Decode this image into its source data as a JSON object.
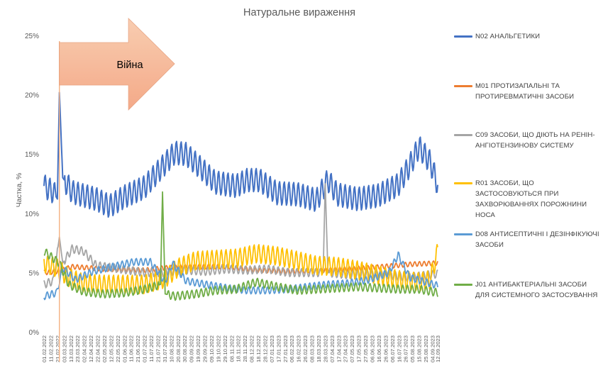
{
  "chart_data": {
    "type": "line",
    "title": "Натуральне вираження",
    "xlabel": "",
    "ylabel": "Частка, %",
    "ylim": [
      0,
      25
    ],
    "yticks": [
      "0%",
      "5%",
      "10%",
      "15%",
      "20%",
      "25%"
    ],
    "grid": false,
    "legend_position": "right",
    "x_start": "2022-02-01",
    "x_end": "2023-09-12",
    "x_tick_labels": [
      "01.02.2022",
      "11.02.2022",
      "21.02.2022",
      "03.03.2022",
      "13.03.2022",
      "23.03.2022",
      "02.04.2022",
      "12.04.2022",
      "22.04.2022",
      "02.05.2022",
      "12.05.2022",
      "22.05.2022",
      "01.06.2022",
      "11.06.2022",
      "21.06.2022",
      "01.07.2022",
      "11.07.2022",
      "21.07.2022",
      "31.07.2022",
      "10.08.2022",
      "20.08.2022",
      "30.08.2022",
      "09.09.2022",
      "19.09.2022",
      "29.09.2022",
      "09.10.2022",
      "19.10.2022",
      "29.10.2022",
      "08.11.2022",
      "18.11.2022",
      "28.11.2022",
      "08.12.2022",
      "18.12.2022",
      "28.12.2022",
      "07.01.2023",
      "17.01.2023",
      "27.01.2023",
      "06.02.2023",
      "16.02.2023",
      "26.02.2023",
      "08.03.2023",
      "18.03.2023",
      "28.03.2023",
      "07.04.2023",
      "17.04.2023",
      "27.04.2023",
      "07.05.2023",
      "17.05.2023",
      "27.05.2023",
      "06.06.2023",
      "16.06.2023",
      "26.06.2023",
      "06.07.2023",
      "16.07.2023",
      "26.07.2023",
      "05.08.2023",
      "15.08.2023",
      "25.08.2023",
      "04.09.2023",
      "12.09.2023"
    ],
    "annotation": {
      "text": "Війна",
      "marker_date": "2022-02-24",
      "arrow_from": "2022-02-24",
      "arrow_to": "2022-08-15"
    },
    "series": [
      {
        "name": "N02 АНАЛЬГЕТИКИ",
        "color": "#4472C4",
        "dates": [
          "2022-02-01",
          "2022-02-15",
          "2022-02-21",
          "2022-02-24",
          "2022-03-01",
          "2022-03-15",
          "2022-04-01",
          "2022-04-20",
          "2022-05-10",
          "2022-06-01",
          "2022-07-01",
          "2022-08-01",
          "2022-08-15",
          "2022-09-01",
          "2022-09-20",
          "2022-10-15",
          "2022-11-15",
          "2022-12-01",
          "2022-12-20",
          "2023-01-15",
          "2023-02-15",
          "2023-03-15",
          "2023-04-01",
          "2023-04-15",
          "2023-05-15",
          "2023-06-15",
          "2023-07-15",
          "2023-08-01",
          "2023-08-15",
          "2023-09-01",
          "2023-09-12"
        ],
        "values": [
          12.3,
          11.8,
          11.2,
          20.2,
          13.0,
          11.8,
          11.5,
          11.2,
          10.6,
          11.4,
          12.2,
          14.2,
          15.1,
          15.0,
          14.0,
          12.6,
          12.3,
          12.8,
          12.8,
          11.7,
          11.6,
          11.1,
          12.8,
          11.6,
          11.2,
          11.5,
          12.4,
          14.0,
          15.6,
          14.3,
          12.4
        ],
        "weekly_amplitude": 1.0
      },
      {
        "name": "M01 ПРОТИЗАПАЛЬНІ ТА ПРОТИРЕВМАТИЧНІ ЗАСОБИ",
        "color": "#ED7D31",
        "dates": [
          "2022-02-01",
          "2022-02-22",
          "2022-03-15",
          "2022-05-01",
          "2022-07-01",
          "2022-08-01",
          "2022-09-15",
          "2022-11-01",
          "2022-12-15",
          "2023-02-01",
          "2023-04-01",
          "2023-06-01",
          "2023-08-01",
          "2023-09-12"
        ],
        "values": [
          5.0,
          5.1,
          5.5,
          5.3,
          5.2,
          5.4,
          5.5,
          5.5,
          5.2,
          5.1,
          5.2,
          5.4,
          5.7,
          5.8
        ],
        "weekly_amplitude": 0.2
      },
      {
        "name": "C09 ЗАСОБИ, ЩО ДІЮТЬ НА РЕНІН-АНГІОТЕНЗИНОВУ СИСТЕМУ",
        "color": "#A5A5A5",
        "dates": [
          "2022-02-01",
          "2022-02-15",
          "2022-02-24",
          "2022-03-01",
          "2022-03-15",
          "2022-04-01",
          "2022-04-20",
          "2022-05-15",
          "2022-07-01",
          "2022-08-01",
          "2022-09-01",
          "2022-10-01",
          "2022-11-01",
          "2022-12-01",
          "2023-01-01",
          "2023-02-01",
          "2023-03-01",
          "2023-03-25",
          "2023-03-28",
          "2023-04-01",
          "2023-05-01",
          "2023-06-01",
          "2023-07-01",
          "2023-08-01",
          "2023-09-12"
        ],
        "values": [
          4.0,
          4.3,
          8.0,
          5.8,
          7.0,
          6.8,
          5.6,
          5.4,
          5.0,
          5.0,
          5.2,
          5.1,
          5.3,
          5.2,
          5.3,
          5.0,
          5.0,
          5.0,
          12.5,
          5.0,
          4.8,
          4.9,
          4.8,
          4.6,
          4.9
        ],
        "weekly_amplitude": 0.35
      },
      {
        "name": "R01 ЗАСОБИ, ЩО ЗАСТОСОВУЮТЬСЯ ПРИ ЗАХВОРЮВАННЯХ ПОРОЖНИНИ НОСА",
        "color": "#FFC000",
        "dates": [
          "2022-02-01",
          "2022-02-20",
          "2022-03-10",
          "2022-04-01",
          "2022-05-01",
          "2022-06-01",
          "2022-07-01",
          "2022-08-01",
          "2022-08-20",
          "2022-09-15",
          "2022-10-15",
          "2022-11-15",
          "2022-12-15",
          "2023-01-15",
          "2023-02-15",
          "2023-03-15",
          "2023-04-15",
          "2023-05-15",
          "2023-06-15",
          "2023-07-15",
          "2023-08-15",
          "2023-09-01",
          "2023-09-12"
        ],
        "values": [
          5.8,
          5.4,
          4.6,
          4.1,
          4.0,
          4.0,
          4.0,
          4.5,
          5.4,
          6.0,
          6.1,
          6.2,
          6.6,
          6.4,
          6.0,
          5.6,
          5.5,
          5.2,
          4.8,
          4.4,
          4.2,
          4.4,
          6.8
        ],
        "weekly_amplitude": 0.8
      },
      {
        "name": "D08 АНТИСЕПТИЧНІ І ДЕЗІНФІКУЮЧІ ЗАСОБИ",
        "color": "#5B9BD5",
        "dates": [
          "2022-02-01",
          "2022-02-20",
          "2022-03-01",
          "2022-03-20",
          "2022-04-15",
          "2022-05-15",
          "2022-06-15",
          "2022-07-10",
          "2022-08-01",
          "2022-08-12",
          "2022-09-01",
          "2022-10-01",
          "2022-11-01",
          "2022-12-01",
          "2023-01-01",
          "2023-02-01",
          "2023-03-01",
          "2023-04-01",
          "2023-05-01",
          "2023-06-01",
          "2023-07-01",
          "2023-07-15",
          "2023-08-01",
          "2023-09-12"
        ],
        "values": [
          3.0,
          3.3,
          5.4,
          4.4,
          5.1,
          5.5,
          5.9,
          5.9,
          4.2,
          5.8,
          4.3,
          4.0,
          3.7,
          3.5,
          3.5,
          3.6,
          3.8,
          4.0,
          4.1,
          4.4,
          5.0,
          6.5,
          4.6,
          3.9
        ],
        "weekly_amplitude": 0.3
      },
      {
        "name": "J01 АНТИБАКТЕРІАЛЬНІ ЗАСОБИ ДЛЯ СИСТЕМНОГО ЗАСТОСУВАННЯ",
        "color": "#70AD47",
        "dates": [
          "2022-02-01",
          "2022-02-24",
          "2022-03-10",
          "2022-04-01",
          "2022-05-01",
          "2022-06-01",
          "2022-07-01",
          "2022-07-25",
          "2022-07-28",
          "2022-08-01",
          "2022-08-15",
          "2022-09-15",
          "2022-10-15",
          "2022-11-15",
          "2022-12-15",
          "2023-01-15",
          "2023-02-15",
          "2023-03-15",
          "2023-04-15",
          "2023-05-15",
          "2023-06-15",
          "2023-07-15",
          "2023-08-15",
          "2023-09-12"
        ],
        "values": [
          6.8,
          5.8,
          4.0,
          3.4,
          3.2,
          3.3,
          3.6,
          4.0,
          11.8,
          3.2,
          3.0,
          3.2,
          3.5,
          3.6,
          4.2,
          3.8,
          3.5,
          3.6,
          3.7,
          3.8,
          3.7,
          3.6,
          3.6,
          3.3
        ],
        "weekly_amplitude": 0.35
      }
    ]
  }
}
